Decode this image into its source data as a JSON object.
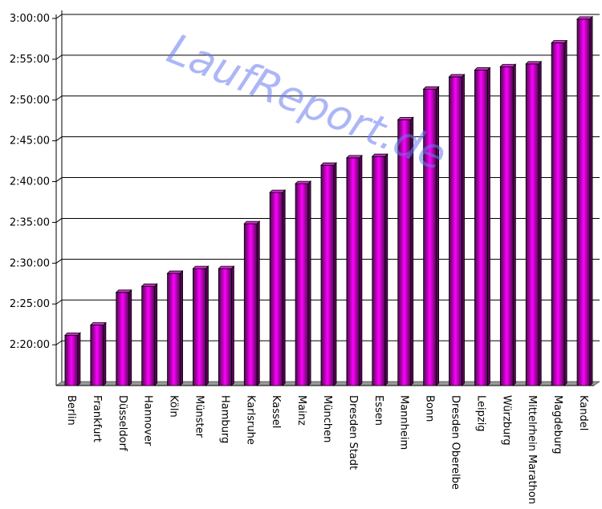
{
  "watermark": "LaufReport.de",
  "chart_data": {
    "type": "bar",
    "title": "",
    "xlabel": "",
    "ylabel": "",
    "categories": [
      "Berlin",
      "Frankfurt",
      "Düsseldorf",
      "Hannover",
      "Köln",
      "Münster",
      "Hamburg",
      "Karlsruhe",
      "Kassel",
      "Mainz",
      "München",
      "Dresden Stadt",
      "Essen",
      "Mannheim",
      "Bonn",
      "Dresden Oberelbe",
      "Leipzig",
      "Würzburg",
      "Mittelrhein Marathon",
      "Magdeburg",
      "Kandel"
    ],
    "values_seconds": [
      8470,
      8545,
      8785,
      8830,
      8925,
      8960,
      8960,
      9290,
      9520,
      9585,
      9720,
      9775,
      9785,
      10055,
      10280,
      10370,
      10420,
      10445,
      10465,
      10620,
      10795
    ],
    "y_range_seconds": [
      8100,
      10800
    ],
    "y_ticks": [
      "2:20:00",
      "2:25:00",
      "2:30:00",
      "2:35:00",
      "2:40:00",
      "2:45:00",
      "2:50:00",
      "2:55:00",
      "3:00:00"
    ],
    "y_tick_values_seconds": [
      8400,
      8700,
      9000,
      9300,
      9600,
      9900,
      10200,
      10500,
      10800
    ],
    "grid": true,
    "legend": "none",
    "colors": {
      "bar_light": "#ff00ff",
      "bar_dark": "#4a0a4a",
      "bar_mid": "#b000b0",
      "bar_top": "#cc33cc",
      "bar_side": "#5a005a",
      "grid": "#000000",
      "floor": "#9a9a9a"
    }
  }
}
